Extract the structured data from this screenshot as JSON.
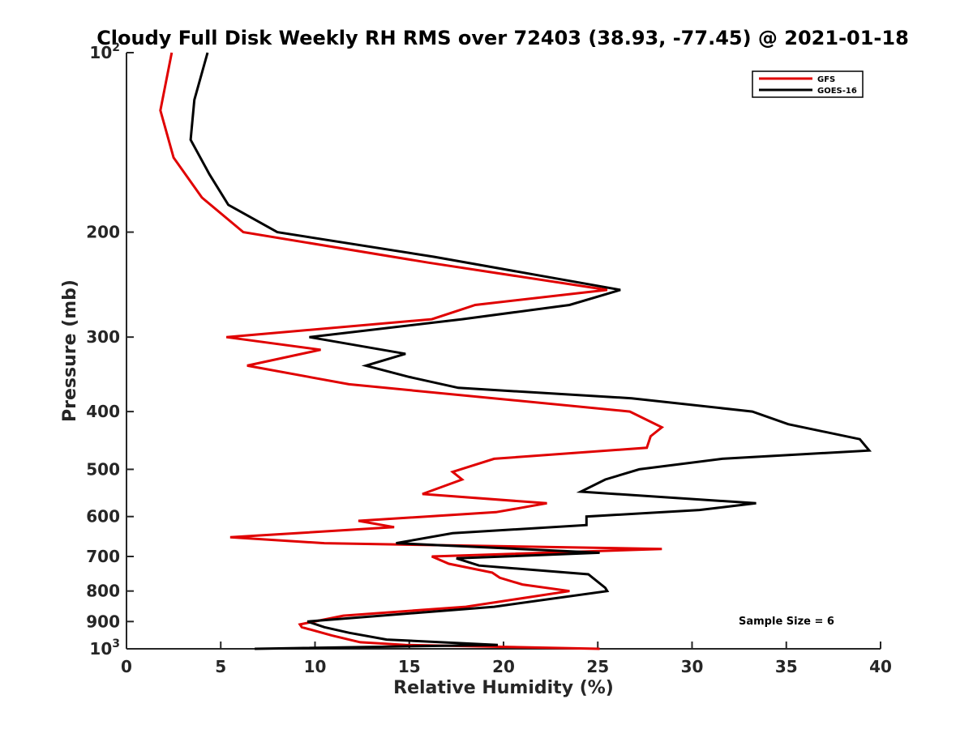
{
  "chart_data": {
    "type": "line",
    "title": "Cloudy Full Disk Weekly RH RMS over 72403 (38.93, -77.45) @ 2021-01-18",
    "xlabel": "Relative Humidity (%)",
    "ylabel": "Pressure (mb)",
    "xlim": [
      0,
      40
    ],
    "ylim": [
      100,
      1000
    ],
    "y_scale": "log",
    "y_reversed": true,
    "grid": false,
    "legend_position": "top-right",
    "x_ticks": [
      "0",
      "5",
      "10",
      "15",
      "20",
      "25",
      "30",
      "35",
      "40"
    ],
    "y_ticks": [
      {
        "value": 100,
        "base": "10",
        "exp": "2"
      },
      {
        "value": 200,
        "base": "200",
        "exp": ""
      },
      {
        "value": 300,
        "base": "300",
        "exp": ""
      },
      {
        "value": 400,
        "base": "400",
        "exp": ""
      },
      {
        "value": 500,
        "base": "500",
        "exp": ""
      },
      {
        "value": 600,
        "base": "600",
        "exp": ""
      },
      {
        "value": 700,
        "base": "700",
        "exp": ""
      },
      {
        "value": 800,
        "base": "800",
        "exp": ""
      },
      {
        "value": 900,
        "base": "900",
        "exp": ""
      },
      {
        "value": 1000,
        "base": "10",
        "exp": "3"
      }
    ],
    "series": [
      {
        "name": "GFS",
        "color": "#e00000",
        "points": [
          [
            2.4,
            100
          ],
          [
            1.8,
            125
          ],
          [
            2.5,
            150
          ],
          [
            4.0,
            175
          ],
          [
            6.2,
            200
          ],
          [
            16.0,
            225
          ],
          [
            25.5,
            250
          ],
          [
            18.5,
            265
          ],
          [
            16.2,
            280
          ],
          [
            5.3,
            300
          ],
          [
            10.3,
            315
          ],
          [
            6.4,
            335
          ],
          [
            11.8,
            360
          ],
          [
            26.7,
            400
          ],
          [
            28.4,
            425
          ],
          [
            27.8,
            440
          ],
          [
            27.6,
            460
          ],
          [
            19.5,
            480
          ],
          [
            17.3,
            505
          ],
          [
            17.8,
            520
          ],
          [
            15.7,
            550
          ],
          [
            22.3,
            570
          ],
          [
            19.6,
            590
          ],
          [
            12.3,
            610
          ],
          [
            14.2,
            625
          ],
          [
            5.5,
            650
          ],
          [
            10.5,
            665
          ],
          [
            28.4,
            680
          ],
          [
            16.2,
            700
          ],
          [
            17.1,
            720
          ],
          [
            19.4,
            745
          ],
          [
            19.8,
            760
          ],
          [
            21.0,
            780
          ],
          [
            23.5,
            800
          ],
          [
            18.0,
            850
          ],
          [
            11.5,
            880
          ],
          [
            9.2,
            910
          ],
          [
            9.3,
            920
          ],
          [
            10.9,
            950
          ],
          [
            12.4,
            975
          ],
          [
            14.8,
            985
          ],
          [
            25.1,
            1000
          ]
        ]
      },
      {
        "name": "GOES-16",
        "color": "#000000",
        "points": [
          [
            4.3,
            100
          ],
          [
            3.6,
            120
          ],
          [
            3.4,
            140
          ],
          [
            4.4,
            160
          ],
          [
            5.4,
            180
          ],
          [
            8.0,
            200
          ],
          [
            16.3,
            220
          ],
          [
            26.2,
            250
          ],
          [
            23.5,
            265
          ],
          [
            17.8,
            280
          ],
          [
            9.7,
            300
          ],
          [
            14.8,
            320
          ],
          [
            12.7,
            335
          ],
          [
            15.0,
            350
          ],
          [
            17.6,
            365
          ],
          [
            26.8,
            380
          ],
          [
            33.2,
            400
          ],
          [
            35.1,
            420
          ],
          [
            38.9,
            445
          ],
          [
            39.4,
            465
          ],
          [
            31.6,
            480
          ],
          [
            27.2,
            500
          ],
          [
            25.4,
            520
          ],
          [
            24.1,
            545
          ],
          [
            33.4,
            570
          ],
          [
            30.4,
            585
          ],
          [
            24.4,
            600
          ],
          [
            24.4,
            620
          ],
          [
            17.3,
            640
          ],
          [
            14.3,
            665
          ],
          [
            25.1,
            690
          ],
          [
            17.5,
            705
          ],
          [
            18.7,
            725
          ],
          [
            24.5,
            750
          ],
          [
            25.4,
            790
          ],
          [
            25.5,
            800
          ],
          [
            19.5,
            850
          ],
          [
            9.6,
            900
          ],
          [
            10.5,
            920
          ],
          [
            11.8,
            940
          ],
          [
            13.8,
            965
          ],
          [
            19.7,
            985
          ],
          [
            6.8,
            1000
          ]
        ]
      }
    ],
    "annotation": "Sample Size = 6"
  }
}
